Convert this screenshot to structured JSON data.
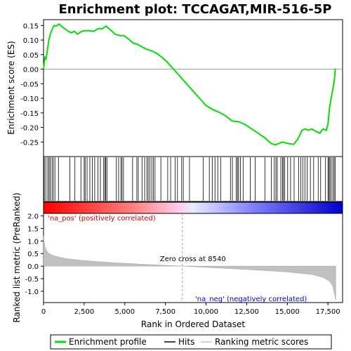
{
  "chart_data": {
    "type": "line",
    "title": "Enrichment plot: TCCAGAT,MIR-516-5P",
    "colors": {
      "profile": "#00e000",
      "hits": "#000000",
      "metric": "#c0c0c0",
      "pos_label": "#cc0000",
      "neg_label": "#0000cc",
      "zero_line": "#a0a0a0"
    },
    "es_panel": {
      "ylabel": "Enrichment score (ES)",
      "ylim": [
        -0.3,
        0.17
      ],
      "yticks": [
        "0.15",
        "0.10",
        "0.05",
        "0.00",
        "-0.05",
        "-0.10",
        "-0.15",
        "-0.20",
        "-0.25"
      ],
      "series": [
        {
          "name": "Enrichment profile",
          "x": [
            0,
            80,
            150,
            250,
            330,
            420,
            520,
            650,
            780,
            950,
            1200,
            1450,
            1700,
            1900,
            2100,
            2350,
            2550,
            2800,
            3100,
            3400,
            3600,
            3850,
            4050,
            4400,
            4700,
            4950,
            5200,
            5500,
            5800,
            6100,
            6400,
            6700,
            7000,
            7300,
            7600,
            8000,
            8400,
            8800,
            9200,
            9600,
            10000,
            10400,
            10800,
            11200,
            11600,
            12000,
            12400,
            12800,
            13200,
            13600,
            14000,
            14250,
            14500,
            14700,
            15000,
            15400,
            15650,
            15900,
            16100,
            16300,
            16500,
            16800,
            17000,
            17200,
            17400,
            17500,
            17600,
            17700,
            17800,
            17900,
            17950
          ],
          "y": [
            0.0,
            0.04,
            0.035,
            0.07,
            0.1,
            0.12,
            0.135,
            0.15,
            0.148,
            0.155,
            0.143,
            0.133,
            0.125,
            0.13,
            0.12,
            0.13,
            0.132,
            0.132,
            0.13,
            0.14,
            0.138,
            0.148,
            0.138,
            0.12,
            0.115,
            0.115,
            0.105,
            0.09,
            0.085,
            0.075,
            0.067,
            0.062,
            0.053,
            0.04,
            0.025,
            0.0,
            -0.025,
            -0.05,
            -0.075,
            -0.1,
            -0.125,
            -0.138,
            -0.148,
            -0.16,
            -0.178,
            -0.18,
            -0.19,
            -0.205,
            -0.22,
            -0.235,
            -0.255,
            -0.26,
            -0.255,
            -0.25,
            -0.255,
            -0.258,
            -0.24,
            -0.21,
            -0.205,
            -0.21,
            -0.205,
            -0.215,
            -0.22,
            -0.205,
            -0.21,
            -0.19,
            -0.13,
            -0.1,
            -0.07,
            -0.035,
            0.0
          ]
        }
      ]
    },
    "hits_panel": {
      "positions": [
        45,
        140,
        260,
        340,
        410,
        520,
        600,
        700,
        920,
        1620,
        1930,
        2300,
        2500,
        2560,
        2680,
        2850,
        3000,
        3150,
        3350,
        3500,
        3700,
        3780,
        3830,
        3900,
        4480,
        4620,
        4760,
        4830,
        4920,
        5480,
        5740,
        5830,
        6060,
        6220,
        6360,
        6440,
        6540,
        6660,
        6760,
        6860,
        7220,
        7640,
        7820,
        8100,
        8240,
        8500,
        8600,
        8980,
        9820,
        10200,
        10380,
        10550,
        10720,
        10900,
        11500,
        11620,
        11850,
        11930,
        12000,
        12120,
        12280,
        12720,
        13020,
        13620,
        14020,
        14200,
        14300,
        14380,
        14600,
        14700,
        14760,
        14840,
        15020,
        15200,
        15420,
        15700,
        15830,
        15950,
        16080,
        16220,
        16420,
        16620,
        16900,
        17050,
        17350,
        17500,
        17560,
        17620,
        17700,
        17800,
        17880,
        17940
      ]
    },
    "metric_panel": {
      "ylabel": "Ranked list metric (PreRanked)",
      "ylim": [
        -1.45,
        2.1
      ],
      "yticks": [
        "2.0",
        "1.5",
        "1.0",
        "0.5",
        "0.0",
        "-0.5",
        "-1.0"
      ],
      "x": [
        0,
        40,
        100,
        200,
        350,
        600,
        1000,
        1500,
        2500,
        4000,
        6000,
        8540,
        11000,
        13000,
        15000,
        16500,
        17200,
        17600,
        17800,
        17900,
        17980
      ],
      "y": [
        1.2,
        0.95,
        0.75,
        0.6,
        0.5,
        0.42,
        0.35,
        0.29,
        0.22,
        0.15,
        0.08,
        0.0,
        -0.08,
        -0.15,
        -0.23,
        -0.33,
        -0.45,
        -0.6,
        -0.8,
        -1.1,
        -1.35
      ],
      "pos_label": "'na_pos' (positively correlated)",
      "neg_label": "'na_neg' (negatively correlated)",
      "zero_cross_label": "Zero cross at 8540",
      "zero_cross": 8540
    },
    "xaxis": {
      "xlabel": "Rank in Ordered Dataset",
      "xlim": [
        0,
        18400
      ],
      "xticks": [
        "0",
        "2,500",
        "5,000",
        "7,500",
        "10,000",
        "12,500",
        "15,000",
        "17,500"
      ],
      "xtick_values": [
        0,
        2500,
        5000,
        7500,
        10000,
        12500,
        15000,
        17500
      ]
    },
    "legend": {
      "placement": "bottom",
      "entries": [
        "Enrichment profile",
        "Hits",
        "Ranking metric scores"
      ]
    }
  }
}
